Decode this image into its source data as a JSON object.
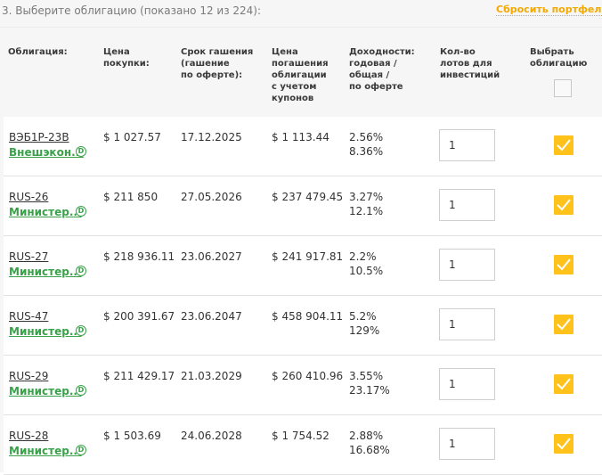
{
  "header": {
    "title": "3. Выберите облигацию (показано 12 из 224):",
    "reset_label": "Сбросить портфель"
  },
  "columns": {
    "bond": "Облигация:",
    "price": "Цена\nпокупки:",
    "maturity": "Срок гашения\n(гашение\nпо оферте):",
    "redemption": "Цена\nпогашения\nоблигации\nс учетом\nкупонов",
    "yield": "Доходности:\nгодовая /\nобщая /\nпо оферте",
    "lots": "Кол-во\nлотов для\nинвестиций",
    "select": "Выбрать\nоблигацию"
  },
  "rows": [
    {
      "ticker": "ВЭБ1Р-23В",
      "issuer": "Внешэкон...",
      "badge": "D",
      "price": "$ 1 027.57",
      "maturity": "17.12.2025",
      "redemption": "$ 1 113.44",
      "yield_annual": "2.56%",
      "yield_total": "8.36%",
      "lots": "1",
      "selected": true
    },
    {
      "ticker": "RUS-26",
      "issuer": "Министер...",
      "badge": "D",
      "price": "$ 211 850",
      "maturity": "27.05.2026",
      "redemption": "$ 237 479.45",
      "yield_annual": "3.27%",
      "yield_total": "12.1%",
      "lots": "1",
      "selected": true
    },
    {
      "ticker": "RUS-27",
      "issuer": "Министер...",
      "badge": "D",
      "price": "$ 218 936.11",
      "maturity": "23.06.2027",
      "redemption": "$ 241 917.81",
      "yield_annual": "2.2%",
      "yield_total": "10.5%",
      "lots": "1",
      "selected": true
    },
    {
      "ticker": "RUS-47",
      "issuer": "Министер...",
      "badge": "D",
      "price": "$ 200 391.67",
      "maturity": "23.06.2047",
      "redemption": "$ 458 904.11",
      "yield_annual": "5.2%",
      "yield_total": "129%",
      "lots": "1",
      "selected": true
    },
    {
      "ticker": "RUS-29",
      "issuer": "Министер...",
      "badge": "D",
      "price": "$ 211 429.17",
      "maturity": "21.03.2029",
      "redemption": "$ 260 410.96",
      "yield_annual": "3.55%",
      "yield_total": "23.17%",
      "lots": "1",
      "selected": true
    },
    {
      "ticker": "RUS-28",
      "issuer": "Министер...",
      "badge": "D",
      "price": "$ 1 503.69",
      "maturity": "24.06.2028",
      "redemption": "$ 1 754.52",
      "yield_annual": "2.88%",
      "yield_total": "16.68%",
      "lots": "1",
      "selected": true
    }
  ],
  "colors": {
    "accent": "#ffc21a",
    "link_green": "#3aa14a",
    "reset_orange": "#f2a900"
  },
  "icons": {
    "badge": "d-circle-icon",
    "checkbox": "checkmark-icon"
  }
}
